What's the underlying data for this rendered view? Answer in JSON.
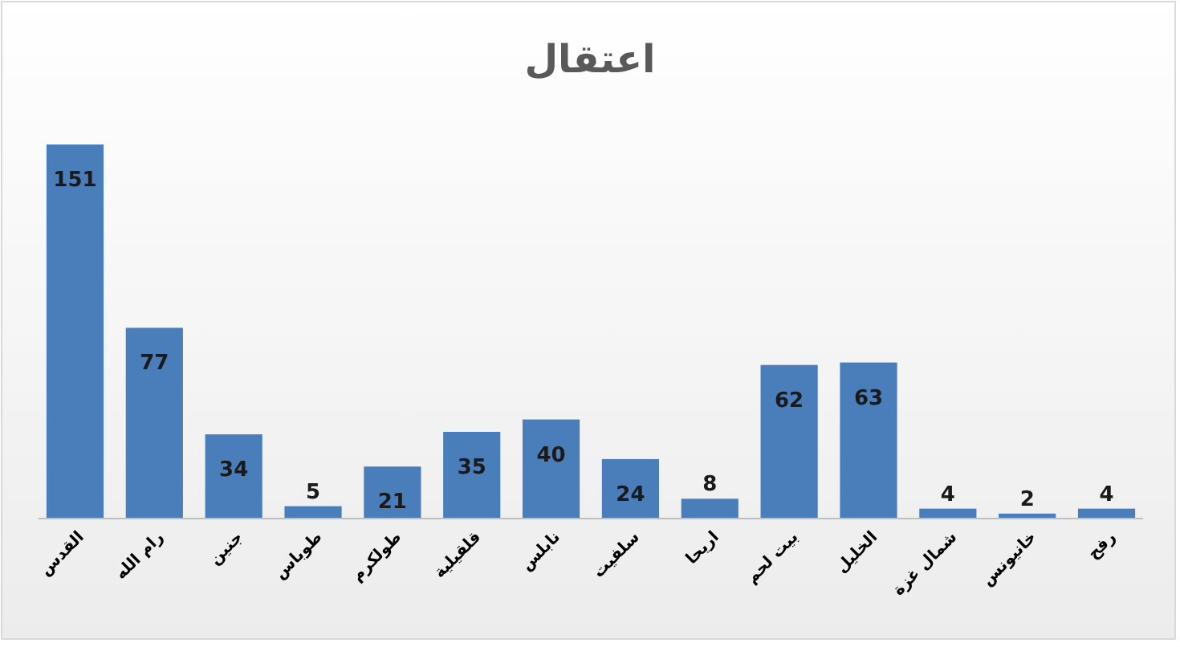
{
  "chart_data": {
    "type": "bar",
    "title": "اعتقال",
    "categories": [
      "القدس",
      "رام الله",
      "جنين",
      "طوباس",
      "طولكرم",
      "قلقيلية",
      "نابلس",
      "سلفيت",
      "اريحا",
      "بيت لحم",
      "الخليل",
      "شمال غزة",
      "خانيونس",
      "رفح"
    ],
    "values": [
      151,
      77,
      34,
      5,
      21,
      35,
      40,
      24,
      8,
      62,
      63,
      4,
      2,
      4
    ],
    "color": "#4a7ebb",
    "data_labels": true
  }
}
